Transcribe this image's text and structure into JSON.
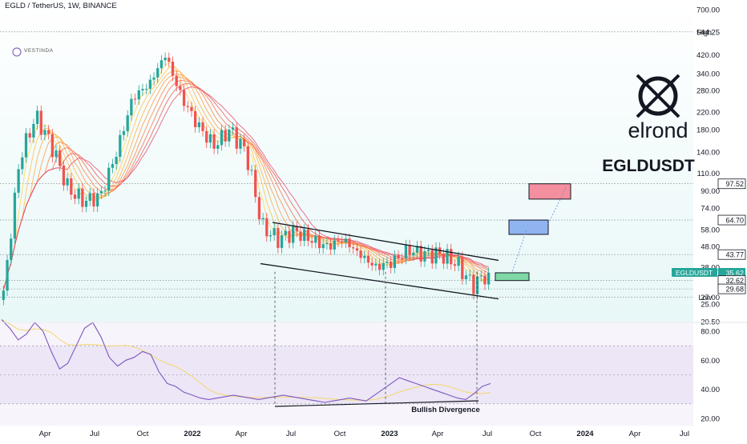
{
  "header": {
    "symbol_line": "EGLD / TetherUS, 1W, BINANCE"
  },
  "brand": {
    "name": "VESTINDA"
  },
  "logo": {
    "wordmark": "elrond",
    "ticker": "EGLDUSDT"
  },
  "colors": {
    "up": "#26a69a",
    "down": "#ef5350",
    "rsi": "#7e57c2",
    "rsi_ma": "#f5d76e",
    "box_red": "#f48fa0",
    "box_blue": "#90b4f0",
    "box_green": "#7fd8a5",
    "price_tag": "#26a69a"
  },
  "chart_data": {
    "type": "candlestick",
    "title": "EGLD / TetherUS, 1W, BINANCE",
    "price_axis": {
      "scale": "log",
      "ticks": [
        "700.00",
        "544.25",
        "420.00",
        "340.00",
        "280.00",
        "220.00",
        "180.00",
        "140.00",
        "110.00",
        "90.00",
        "74.00",
        "58.00",
        "48.00",
        "38.00",
        "27.00",
        "25.00",
        "20.50"
      ],
      "badges": [
        {
          "label": "97.52",
          "style": "box"
        },
        {
          "label": "64.70",
          "style": "box"
        },
        {
          "label": "43.77",
          "style": "box"
        },
        {
          "label": "EGLDUSDT",
          "style": "tag"
        },
        {
          "label": "35.62",
          "style": "tag"
        },
        {
          "label": "32.62",
          "style": "box"
        },
        {
          "label": "29.68",
          "style": "box"
        }
      ]
    },
    "levels": [
      {
        "label": "High",
        "price": 544.25
      },
      {
        "label": "Low",
        "price": 27.0
      },
      {
        "label": "",
        "price": 97.52
      },
      {
        "label": "",
        "price": 64.7
      },
      {
        "label": "",
        "price": 43.77
      },
      {
        "label": "",
        "price": 32.62
      },
      {
        "label": "",
        "price": 29.68
      }
    ],
    "time_axis": {
      "labels": [
        "Apr",
        "Jul",
        "Oct",
        "2022",
        "Apr",
        "Jul",
        "Oct",
        "2023",
        "Apr",
        "Jul",
        "Oct",
        "2024",
        "Apr",
        "Jul"
      ]
    },
    "price_series": [
      {
        "date": "2021-01",
        "close": 28
      },
      {
        "date": "2021-02",
        "close": 130
      },
      {
        "date": "2021-03",
        "close": 210
      },
      {
        "date": "2021-04",
        "close": 150
      },
      {
        "date": "2021-05",
        "close": 92
      },
      {
        "date": "2021-06",
        "close": 80
      },
      {
        "date": "2021-07",
        "close": 85
      },
      {
        "date": "2021-08",
        "close": 140
      },
      {
        "date": "2021-09",
        "close": 260
      },
      {
        "date": "2021-10",
        "close": 300
      },
      {
        "date": "2021-11",
        "close": 420
      },
      {
        "date": "2021-12",
        "close": 260
      },
      {
        "date": "2022-01",
        "close": 190
      },
      {
        "date": "2022-02",
        "close": 150
      },
      {
        "date": "2022-03",
        "close": 180
      },
      {
        "date": "2022-04",
        "close": 140
      },
      {
        "date": "2022-05",
        "close": 60
      },
      {
        "date": "2022-06",
        "close": 52
      },
      {
        "date": "2022-07",
        "close": 57
      },
      {
        "date": "2022-08",
        "close": 52
      },
      {
        "date": "2022-09",
        "close": 48
      },
      {
        "date": "2022-10",
        "close": 52
      },
      {
        "date": "2022-11",
        "close": 44
      },
      {
        "date": "2022-12",
        "close": 38
      },
      {
        "date": "2023-01",
        "close": 40
      },
      {
        "date": "2023-02",
        "close": 46
      },
      {
        "date": "2023-03",
        "close": 44
      },
      {
        "date": "2023-04",
        "close": 44
      },
      {
        "date": "2023-05",
        "close": 40
      },
      {
        "date": "2023-06",
        "close": 31
      },
      {
        "date": "2023-07",
        "close": 35.62
      }
    ],
    "projection": [
      {
        "label": "",
        "low": 32.62,
        "high": 35.62
      },
      {
        "label": "",
        "low": 55,
        "high": 64.7
      },
      {
        "label": "",
        "low": 82,
        "high": 97.52
      }
    ],
    "rsi": {
      "ticks": [
        "80.00",
        "60.00",
        "40.00",
        "20.00"
      ],
      "ylim": [
        20,
        100
      ],
      "values": [
        88,
        82,
        74,
        78,
        86,
        80,
        66,
        54,
        58,
        70,
        82,
        86,
        76,
        62,
        56,
        60,
        62,
        66,
        64,
        52,
        44,
        42,
        38,
        36,
        34,
        33,
        34,
        35,
        36,
        35,
        34,
        33,
        34,
        35,
        36,
        35,
        34,
        33,
        32,
        31,
        32,
        33,
        34,
        33,
        32,
        36,
        40,
        44,
        48,
        46,
        44,
        42,
        40,
        38,
        36,
        34,
        33,
        37,
        42,
        44
      ]
    },
    "annotations": [
      {
        "text": "Bullish Divergence"
      }
    ]
  }
}
